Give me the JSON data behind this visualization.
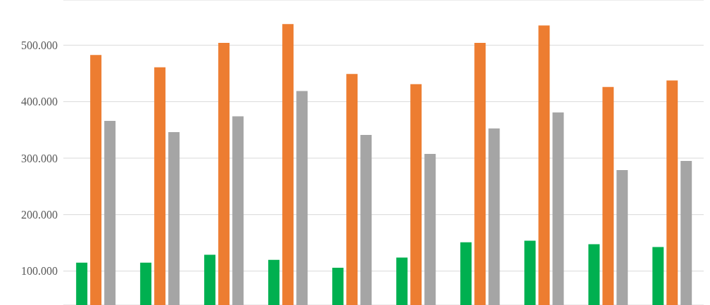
{
  "chart_data": {
    "type": "bar",
    "categories": [
      null,
      null,
      null,
      null,
      null,
      null,
      null,
      null,
      null,
      null
    ],
    "series": [
      {
        "color": "#00b050",
        "values": [
          115000,
          115000,
          129000,
          120000,
          106000,
          124000,
          151000,
          154000,
          147500,
          142500
        ]
      },
      {
        "color": "#ed7d31",
        "values": [
          482500,
          461000,
          504000,
          537500,
          449000,
          431000,
          504000,
          535000,
          426000,
          437500
        ]
      },
      {
        "color": "#a5a5a5",
        "values": [
          366000,
          346000,
          374000,
          419000,
          341000,
          307500,
          352500,
          381000,
          279000,
          295000
        ]
      }
    ],
    "ylim": [
      40000,
      580000
    ],
    "yticks": [
      {
        "value": 100000,
        "label": "100.000"
      },
      {
        "value": 200000,
        "label": "200.000"
      },
      {
        "value": 300000,
        "label": "300.000"
      },
      {
        "value": 400000,
        "label": "400.000"
      },
      {
        "value": 500000,
        "label": "500.000"
      }
    ],
    "grid": "y",
    "tick_labels": "y"
  }
}
